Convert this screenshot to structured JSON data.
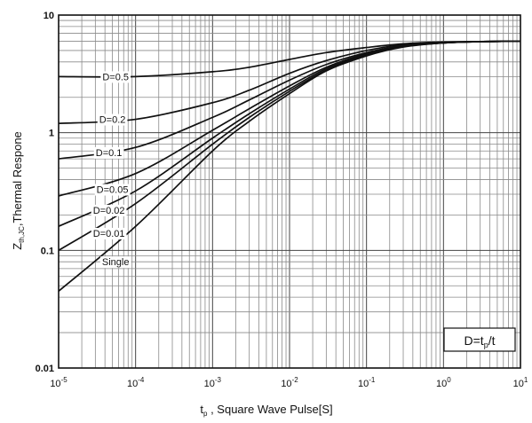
{
  "chart_data": {
    "type": "line",
    "x_scale": "log",
    "y_scale": "log",
    "xlim": [
      1e-05,
      10
    ],
    "ylim": [
      0.01,
      10
    ],
    "grid": true,
    "x_ticks": [
      {
        "value": 1e-05,
        "base": "10",
        "exp": "-5"
      },
      {
        "value": 0.0001,
        "base": "10",
        "exp": "-4"
      },
      {
        "value": 0.001,
        "base": "10",
        "exp": "-3"
      },
      {
        "value": 0.01,
        "base": "10",
        "exp": "-2"
      },
      {
        "value": 0.1,
        "base": "10",
        "exp": "-1"
      },
      {
        "value": 1,
        "base": "10",
        "exp": "0"
      },
      {
        "value": 10,
        "base": "10",
        "exp": "1"
      }
    ],
    "y_ticks": [
      {
        "value": 0.01,
        "label": "0.01"
      },
      {
        "value": 0.1,
        "label": "0.1"
      },
      {
        "value": 1,
        "label": "1"
      },
      {
        "value": 10,
        "label": "10"
      }
    ],
    "xlabel": {
      "main": "t",
      "sub": "p",
      "rest": " ,  Square Wave Pulse[S]"
    },
    "ylabel": {
      "main": "Z",
      "sub": "th,JC",
      "rest": ",Thermal Respone"
    },
    "annotation": {
      "pre": "D=t",
      "sub": "p",
      "post": "/t"
    },
    "series": [
      {
        "name": "D=0.5",
        "label_at": [
          5.5e-05,
          3.0
        ],
        "points": [
          [
            1e-05,
            3.0
          ],
          [
            0.0001,
            3.0
          ],
          [
            0.001,
            3.3
          ],
          [
            0.003,
            3.6
          ],
          [
            0.01,
            4.2
          ],
          [
            0.03,
            4.8
          ],
          [
            0.1,
            5.3
          ],
          [
            0.3,
            5.7
          ],
          [
            1,
            5.9
          ],
          [
            3,
            5.95
          ],
          [
            10,
            6.0
          ]
        ]
      },
      {
        "name": "D=0.2",
        "label_at": [
          5e-05,
          1.3
        ],
        "points": [
          [
            1e-05,
            1.2
          ],
          [
            0.0001,
            1.3
          ],
          [
            0.001,
            1.8
          ],
          [
            0.003,
            2.3
          ],
          [
            0.01,
            3.2
          ],
          [
            0.03,
            4.1
          ],
          [
            0.1,
            5.0
          ],
          [
            0.3,
            5.6
          ],
          [
            1,
            5.85
          ],
          [
            3,
            5.95
          ],
          [
            10,
            6.0
          ]
        ]
      },
      {
        "name": "D=0.1",
        "label_at": [
          4.5e-05,
          0.68
        ],
        "points": [
          [
            1e-05,
            0.6
          ],
          [
            0.0001,
            0.75
          ],
          [
            0.001,
            1.35
          ],
          [
            0.003,
            1.9
          ],
          [
            0.01,
            2.8
          ],
          [
            0.03,
            3.8
          ],
          [
            0.1,
            4.8
          ],
          [
            0.3,
            5.5
          ],
          [
            1,
            5.8
          ],
          [
            3,
            5.95
          ],
          [
            10,
            6.0
          ]
        ]
      },
      {
        "name": "D=0.05",
        "label_at": [
          5e-05,
          0.33
        ],
        "points": [
          [
            1e-05,
            0.29
          ],
          [
            0.0001,
            0.45
          ],
          [
            0.001,
            1.05
          ],
          [
            0.003,
            1.6
          ],
          [
            0.01,
            2.5
          ],
          [
            0.03,
            3.6
          ],
          [
            0.1,
            4.7
          ],
          [
            0.3,
            5.45
          ],
          [
            1,
            5.8
          ],
          [
            3,
            5.95
          ],
          [
            10,
            6.0
          ]
        ]
      },
      {
        "name": "D=0.02",
        "label_at": [
          4.5e-05,
          0.22
        ],
        "points": [
          [
            1e-05,
            0.16
          ],
          [
            0.0001,
            0.32
          ],
          [
            0.001,
            0.9
          ],
          [
            0.003,
            1.45
          ],
          [
            0.01,
            2.35
          ],
          [
            0.03,
            3.5
          ],
          [
            0.1,
            4.6
          ],
          [
            0.3,
            5.4
          ],
          [
            1,
            5.8
          ],
          [
            3,
            5.95
          ],
          [
            10,
            6.0
          ]
        ]
      },
      {
        "name": "D=0.01",
        "label_at": [
          4.5e-05,
          0.14
        ],
        "points": [
          [
            1e-05,
            0.1
          ],
          [
            0.0001,
            0.25
          ],
          [
            0.001,
            0.8
          ],
          [
            0.003,
            1.35
          ],
          [
            0.01,
            2.25
          ],
          [
            0.03,
            3.4
          ],
          [
            0.1,
            4.55
          ],
          [
            0.3,
            5.4
          ],
          [
            1,
            5.8
          ],
          [
            3,
            5.95
          ],
          [
            10,
            6.0
          ]
        ]
      },
      {
        "name": "Single",
        "label_at": [
          5.5e-05,
          0.08
        ],
        "points": [
          [
            1e-05,
            0.045
          ],
          [
            0.0001,
            0.16
          ],
          [
            0.001,
            0.7
          ],
          [
            0.003,
            1.25
          ],
          [
            0.01,
            2.15
          ],
          [
            0.03,
            3.35
          ],
          [
            0.1,
            4.5
          ],
          [
            0.3,
            5.35
          ],
          [
            1,
            5.8
          ],
          [
            3,
            5.95
          ],
          [
            10,
            6.0
          ]
        ]
      }
    ]
  }
}
